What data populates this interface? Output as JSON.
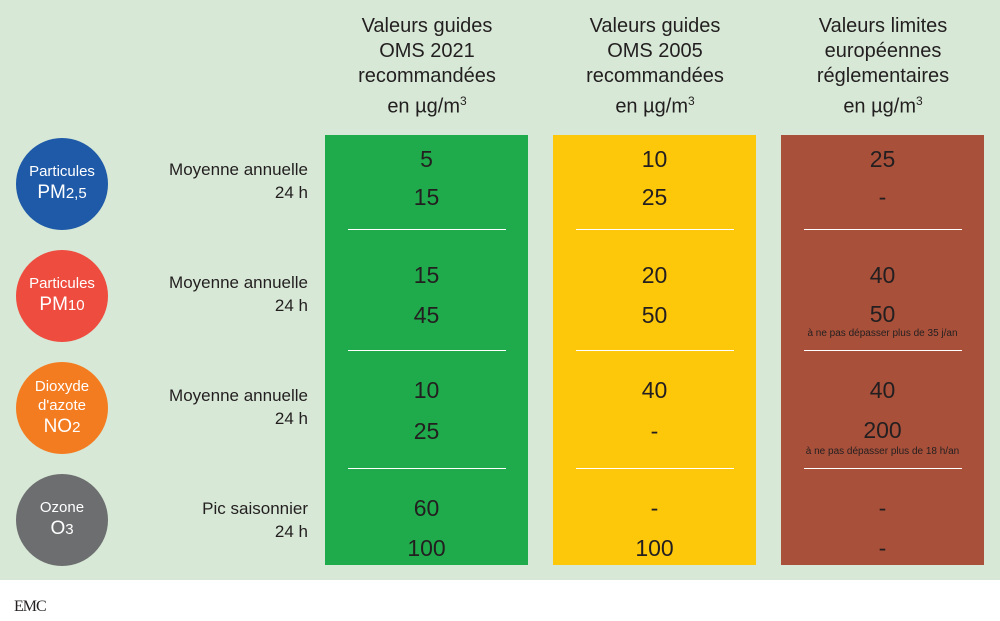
{
  "columns": [
    {
      "lines": [
        "Valeurs guides",
        "OMS 2021",
        "recommandées"
      ],
      "unit_prefix": "en µg/m",
      "unit_sup": "3",
      "color": "#1faa4b"
    },
    {
      "lines": [
        "Valeurs guides",
        "OMS 2005",
        "recommandées"
      ],
      "unit_prefix": "en µg/m",
      "unit_sup": "3",
      "color": "#fdc70a"
    },
    {
      "lines": [
        "Valeurs limites",
        "européennes",
        "réglementaires"
      ],
      "unit_prefix": "en µg/m",
      "unit_sup": "3",
      "color": "#a8503a"
    }
  ],
  "pollutants": [
    {
      "line1": "Particules",
      "line2_main": "PM",
      "line2_sub": "2,5",
      "color": "#1e5aa8",
      "metrics": [
        "Moyenne annuelle",
        "24 h"
      ],
      "values": [
        [
          "5",
          "15"
        ],
        [
          "10",
          "25"
        ],
        [
          "25",
          "-"
        ]
      ],
      "notes": [
        "",
        ""
      ]
    },
    {
      "line1": "Particules",
      "line2_main": "PM",
      "line2_sub": "10",
      "color": "#ee4c3f",
      "metrics": [
        "Moyenne annuelle",
        "24 h"
      ],
      "values": [
        [
          "15",
          "45"
        ],
        [
          "20",
          "50"
        ],
        [
          "40",
          "50"
        ]
      ],
      "notes": [
        "",
        "à ne pas dépasser plus de 35 j/an"
      ]
    },
    {
      "line1": "Dioxyde",
      "line1b": "d'azote",
      "line2_main": "NO",
      "line2_sub": "2",
      "color": "#f47c20",
      "metrics": [
        "Moyenne annuelle",
        "24 h"
      ],
      "values": [
        [
          "10",
          "25"
        ],
        [
          "40",
          "-"
        ],
        [
          "40",
          "200"
        ]
      ],
      "notes": [
        "",
        "à ne pas dépasser plus de 18 h/an"
      ]
    },
    {
      "line1": "Ozone",
      "line2_main": "O",
      "line2_sub": "3",
      "color": "#6d6e70",
      "metrics": [
        "Pic saisonnier",
        "24 h"
      ],
      "values": [
        [
          "60",
          "100"
        ],
        [
          "-",
          "100"
        ],
        [
          "-",
          "-"
        ]
      ],
      "notes": [
        "",
        ""
      ]
    }
  ],
  "logo": "EMC"
}
